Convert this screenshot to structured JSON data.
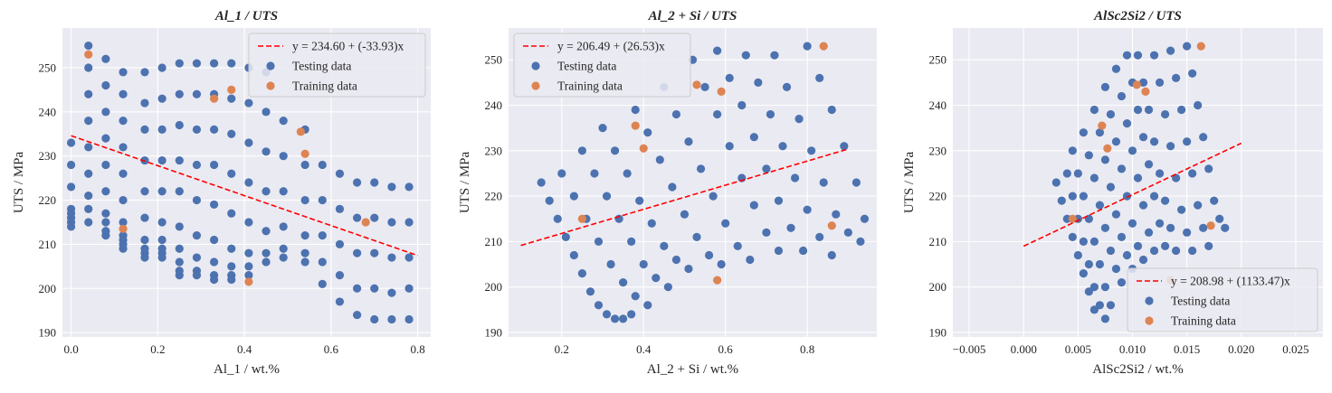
{
  "chart_data": [
    {
      "type": "scatter",
      "title": "Al_1 / UTS",
      "xlabel": "Al_1 / wt.%",
      "ylabel": "UTS / MPa",
      "xlim": [
        -0.02,
        0.83
      ],
      "ylim": [
        189,
        259
      ],
      "xticks": [
        0.0,
        0.2,
        0.4,
        0.6,
        0.8
      ],
      "xtick_labels": [
        "0.0",
        "0.2",
        "0.4",
        "0.6",
        "0.8"
      ],
      "yticks": [
        190,
        200,
        210,
        220,
        230,
        240,
        250
      ],
      "ytick_labels": [
        "190",
        "200",
        "210",
        "220",
        "230",
        "240",
        "250"
      ],
      "legend_position": "top-right",
      "fit": {
        "label": "y = 234.60 + (-33.93)x",
        "intercept": 234.6,
        "slope": -33.93,
        "x_range": [
          0.0,
          0.8
        ],
        "color": "#ff0000"
      },
      "series": [
        {
          "name": "Testing data",
          "color": "#4c72b0",
          "x": [
            0.0,
            0.0,
            0.0,
            0.0,
            0.0,
            0.0,
            0.0,
            0.0,
            0.04,
            0.04,
            0.04,
            0.04,
            0.04,
            0.04,
            0.04,
            0.04,
            0.04,
            0.08,
            0.08,
            0.08,
            0.08,
            0.08,
            0.08,
            0.08,
            0.08,
            0.08,
            0.08,
            0.12,
            0.12,
            0.12,
            0.12,
            0.12,
            0.12,
            0.12,
            0.12,
            0.12,
            0.12,
            0.12,
            0.17,
            0.17,
            0.17,
            0.17,
            0.17,
            0.17,
            0.17,
            0.17,
            0.17,
            0.17,
            0.21,
            0.21,
            0.21,
            0.21,
            0.21,
            0.21,
            0.21,
            0.21,
            0.21,
            0.21,
            0.25,
            0.25,
            0.25,
            0.25,
            0.25,
            0.25,
            0.25,
            0.25,
            0.25,
            0.25,
            0.29,
            0.29,
            0.29,
            0.29,
            0.29,
            0.29,
            0.29,
            0.29,
            0.29,
            0.33,
            0.33,
            0.33,
            0.33,
            0.33,
            0.33,
            0.33,
            0.33,
            0.33,
            0.37,
            0.37,
            0.37,
            0.37,
            0.37,
            0.37,
            0.37,
            0.37,
            0.37,
            0.41,
            0.41,
            0.41,
            0.41,
            0.41,
            0.41,
            0.41,
            0.41,
            0.45,
            0.45,
            0.45,
            0.45,
            0.45,
            0.45,
            0.45,
            0.49,
            0.49,
            0.49,
            0.49,
            0.49,
            0.49,
            0.54,
            0.54,
            0.54,
            0.54,
            0.54,
            0.54,
            0.58,
            0.58,
            0.58,
            0.58,
            0.58,
            0.62,
            0.62,
            0.62,
            0.62,
            0.62,
            0.66,
            0.66,
            0.66,
            0.66,
            0.66,
            0.7,
            0.7,
            0.7,
            0.7,
            0.7,
            0.74,
            0.74,
            0.74,
            0.74,
            0.74,
            0.78,
            0.78,
            0.78,
            0.78,
            0.78
          ],
          "y": [
            233,
            228,
            223,
            218,
            217,
            216,
            215,
            214,
            255,
            250,
            244,
            238,
            232,
            226,
            221,
            218,
            215,
            252,
            246,
            240,
            234,
            228,
            222,
            217,
            215,
            213,
            212,
            249,
            244,
            238,
            232,
            226,
            220,
            215,
            212,
            211,
            210,
            209,
            249,
            242,
            236,
            229,
            222,
            216,
            211,
            209,
            208,
            207,
            250,
            243,
            236,
            229,
            222,
            215,
            211,
            209,
            208,
            207,
            251,
            244,
            237,
            229,
            222,
            214,
            209,
            206,
            204,
            203,
            251,
            244,
            236,
            228,
            220,
            212,
            207,
            204,
            203,
            251,
            244,
            236,
            228,
            219,
            211,
            206,
            203,
            202,
            251,
            243,
            235,
            226,
            217,
            209,
            205,
            203,
            202,
            250,
            242,
            233,
            224,
            215,
            208,
            205,
            203,
            249,
            240,
            231,
            222,
            213,
            208,
            206,
            238,
            230,
            222,
            214,
            209,
            207,
            236,
            228,
            220,
            212,
            208,
            206,
            228,
            220,
            212,
            206,
            201,
            226,
            218,
            210,
            203,
            197,
            224,
            216,
            208,
            200,
            194,
            224,
            216,
            208,
            200,
            193,
            223,
            215,
            207,
            199,
            193,
            223,
            215,
            207,
            200,
            193
          ]
        },
        {
          "name": "Training data",
          "color": "#dd8452",
          "x": [
            0.04,
            0.12,
            0.33,
            0.37,
            0.41,
            0.53,
            0.54,
            0.68
          ],
          "y": [
            253,
            213.5,
            243,
            245,
            201.5,
            235.5,
            230.5,
            215
          ]
        }
      ]
    },
    {
      "type": "scatter",
      "title": "Al_2 + Si / UTS",
      "xlabel": "Al_2 + Si / wt.%",
      "ylabel": "UTS / MPa",
      "xlim": [
        0.07,
        0.97
      ],
      "ylim": [
        189,
        257
      ],
      "xticks": [
        0.2,
        0.4,
        0.6,
        0.8
      ],
      "xtick_labels": [
        "0.2",
        "0.4",
        "0.6",
        "0.8"
      ],
      "yticks": [
        190,
        200,
        210,
        220,
        230,
        240,
        250
      ],
      "ytick_labels": [
        "190",
        "200",
        "210",
        "220",
        "230",
        "240",
        "250"
      ],
      "legend_position": "top-left",
      "fit": {
        "label": "y = 206.49 + (26.53)x",
        "intercept": 206.49,
        "slope": 26.53,
        "x_range": [
          0.1,
          0.9
        ],
        "color": "#ff0000"
      },
      "series": [
        {
          "name": "Testing data",
          "color": "#4c72b0",
          "x": [
            0.15,
            0.17,
            0.19,
            0.21,
            0.23,
            0.25,
            0.27,
            0.29,
            0.31,
            0.33,
            0.35,
            0.37,
            0.2,
            0.23,
            0.26,
            0.29,
            0.32,
            0.35,
            0.38,
            0.41,
            0.25,
            0.28,
            0.31,
            0.34,
            0.37,
            0.4,
            0.43,
            0.46,
            0.3,
            0.33,
            0.36,
            0.39,
            0.42,
            0.45,
            0.48,
            0.51,
            0.38,
            0.41,
            0.44,
            0.47,
            0.5,
            0.53,
            0.56,
            0.59,
            0.45,
            0.48,
            0.51,
            0.54,
            0.57,
            0.6,
            0.63,
            0.66,
            0.52,
            0.55,
            0.58,
            0.61,
            0.64,
            0.67,
            0.7,
            0.73,
            0.58,
            0.61,
            0.64,
            0.67,
            0.7,
            0.73,
            0.76,
            0.79,
            0.65,
            0.68,
            0.71,
            0.74,
            0.77,
            0.8,
            0.83,
            0.86,
            0.72,
            0.75,
            0.78,
            0.81,
            0.84,
            0.87,
            0.9,
            0.93,
            0.8,
            0.83,
            0.86,
            0.89,
            0.92,
            0.94
          ],
          "y": [
            223,
            219,
            215,
            211,
            207,
            203,
            199,
            196,
            194,
            193,
            193,
            194,
            225,
            220,
            215,
            210,
            205,
            201,
            198,
            196,
            230,
            225,
            220,
            215,
            210,
            205,
            202,
            200,
            235,
            230,
            225,
            219,
            214,
            209,
            206,
            204,
            239,
            234,
            228,
            222,
            216,
            211,
            207,
            205,
            244,
            238,
            232,
            226,
            220,
            214,
            209,
            206,
            250,
            244,
            238,
            231,
            224,
            218,
            212,
            208,
            252,
            246,
            240,
            233,
            226,
            219,
            213,
            208,
            251,
            245,
            238,
            231,
            224,
            217,
            211,
            207,
            251,
            244,
            237,
            230,
            223,
            216,
            212,
            210,
            253,
            246,
            239,
            231,
            223,
            215
          ]
        },
        {
          "name": "Training data",
          "color": "#dd8452",
          "x": [
            0.25,
            0.38,
            0.4,
            0.53,
            0.58,
            0.59,
            0.84,
            0.86
          ],
          "y": [
            215,
            235.5,
            230.5,
            244.5,
            201.5,
            243,
            253,
            213.5
          ]
        }
      ]
    },
    {
      "type": "scatter",
      "title": "AlSc2Si2 / UTS",
      "xlabel": "AlSc2Si2 / wt.%",
      "ylabel": "UTS / MPa",
      "xlim": [
        -0.0065,
        0.0275
      ],
      "ylim": [
        189,
        257
      ],
      "xticks": [
        -0.005,
        0.0,
        0.005,
        0.01,
        0.015,
        0.02,
        0.025
      ],
      "xtick_labels": [
        "−0.005",
        "0.000",
        "0.005",
        "0.010",
        "0.015",
        "0.020",
        "0.025"
      ],
      "yticks": [
        190,
        200,
        210,
        220,
        230,
        240,
        250
      ],
      "ytick_labels": [
        "190",
        "200",
        "210",
        "220",
        "230",
        "240",
        "250"
      ],
      "legend_position": "lower-right",
      "fit": {
        "label": "y = 208.98 + (1133.47)x",
        "intercept": 208.98,
        "slope": 1133.47,
        "x_range": [
          0.0,
          0.02
        ],
        "color": "#ff0000"
      },
      "series": [
        {
          "name": "Testing data",
          "color": "#4c72b0",
          "x": [
            0.003,
            0.0035,
            0.004,
            0.0045,
            0.005,
            0.0055,
            0.006,
            0.0065,
            0.004,
            0.0045,
            0.005,
            0.0055,
            0.006,
            0.0065,
            0.007,
            0.0075,
            0.0045,
            0.005,
            0.0055,
            0.006,
            0.0065,
            0.007,
            0.0075,
            0.008,
            0.0055,
            0.006,
            0.0065,
            0.007,
            0.0075,
            0.008,
            0.0085,
            0.009,
            0.0065,
            0.007,
            0.0075,
            0.008,
            0.0085,
            0.009,
            0.0095,
            0.01,
            0.0075,
            0.008,
            0.0085,
            0.009,
            0.0095,
            0.01,
            0.0105,
            0.011,
            0.0085,
            0.009,
            0.0095,
            0.01,
            0.0105,
            0.011,
            0.0115,
            0.012,
            0.0095,
            0.01,
            0.0105,
            0.011,
            0.0115,
            0.012,
            0.0125,
            0.013,
            0.0105,
            0.011,
            0.0115,
            0.012,
            0.0125,
            0.013,
            0.0135,
            0.014,
            0.012,
            0.0125,
            0.013,
            0.0135,
            0.014,
            0.0145,
            0.015,
            0.0155,
            0.0135,
            0.014,
            0.0145,
            0.015,
            0.0155,
            0.016,
            0.0165,
            0.017,
            0.015,
            0.0155,
            0.016,
            0.0165,
            0.017,
            0.0175,
            0.018,
            0.0185
          ],
          "y": [
            223,
            219,
            215,
            211,
            207,
            203,
            199,
            195,
            225,
            220,
            215,
            210,
            205,
            200,
            196,
            193,
            230,
            225,
            220,
            215,
            210,
            205,
            200,
            196,
            234,
            229,
            224,
            218,
            213,
            208,
            204,
            201,
            239,
            234,
            228,
            222,
            216,
            211,
            207,
            204,
            244,
            238,
            232,
            226,
            220,
            214,
            209,
            206,
            248,
            242,
            236,
            230,
            224,
            218,
            212,
            208,
            251,
            245,
            239,
            233,
            227,
            220,
            214,
            209,
            251,
            245,
            239,
            232,
            225,
            219,
            213,
            208,
            251,
            245,
            238,
            231,
            224,
            217,
            212,
            208,
            252,
            246,
            239,
            232,
            225,
            218,
            213,
            209,
            253,
            247,
            240,
            233,
            226,
            219,
            215,
            213
          ]
        },
        {
          "name": "Training data",
          "color": "#dd8452",
          "x": [
            0.0045,
            0.0072,
            0.0077,
            0.0104,
            0.0112,
            0.0135,
            0.0163,
            0.0172
          ],
          "y": [
            215,
            235.5,
            230.5,
            244.5,
            243,
            201.5,
            253,
            213.5
          ]
        }
      ]
    }
  ]
}
